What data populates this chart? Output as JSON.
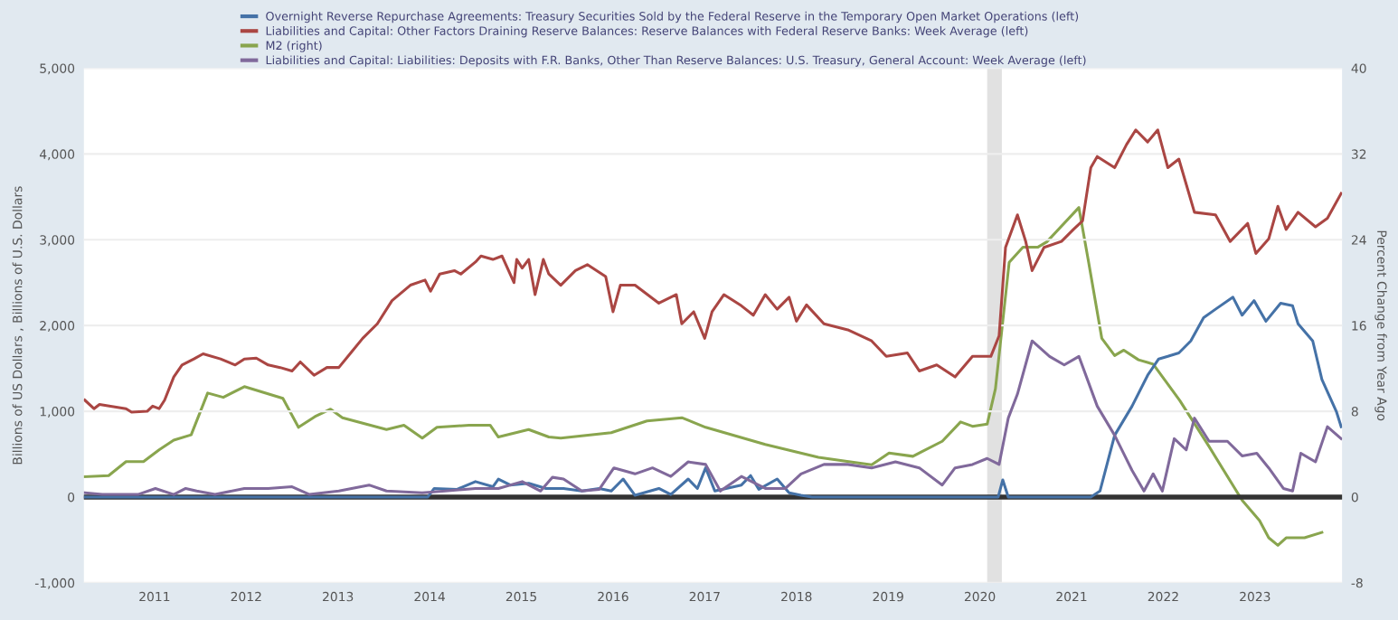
{
  "chart_data": {
    "type": "line",
    "ylabel": "Billions of US Dollars , Billions of U.S. Dollars",
    "y2label": "Percent Change from Year Ago",
    "xlim": [
      2010.23,
      2023.95
    ],
    "xticks": [
      2011,
      2012,
      2013,
      2014,
      2015,
      2016,
      2017,
      2018,
      2019,
      2020,
      2021,
      2022,
      2023
    ],
    "ylim": [
      -1000,
      5000
    ],
    "yticks": [
      {
        "value": -1000,
        "label": "-1,000"
      },
      0,
      {
        "value": 1000,
        "label": "1,000"
      },
      {
        "value": 2000,
        "label": "2,000"
      },
      {
        "value": 3000,
        "label": "3,000"
      },
      {
        "value": 4000,
        "label": "4,000"
      },
      {
        "value": 5000,
        "label": "5,000"
      }
    ],
    "y2lim": [
      -8,
      40
    ],
    "y2ticks": [
      -8,
      0,
      8,
      16,
      24,
      32,
      40
    ],
    "grid": "y",
    "legend": "top left",
    "line_style": "solid",
    "marker": "none",
    "bands": [
      {
        "axis": "x",
        "from": 2020.08,
        "to": 2020.24,
        "color": "#e1e1e1"
      }
    ],
    "ref_lines": [
      {
        "axis": "y",
        "value": 0,
        "color": "#333333"
      }
    ],
    "series": [
      {
        "name": "Overnight Reverse Repurchase Agreements: Treasury Securities Sold by the Federal Reserve in the Temporary Open Market Operations (left)",
        "color": "#4572a7",
        "x": [
          2010.24,
          2013.98,
          2014.05,
          2014.3,
          2014.5,
          2014.69,
          2014.75,
          2014.88,
          2015.08,
          2015.27,
          2015.46,
          2015.66,
          2015.85,
          2015.98,
          2016.11,
          2016.24,
          2016.5,
          2016.63,
          2016.82,
          2016.92,
          2017.01,
          2017.11,
          2017.4,
          2017.5,
          2017.59,
          2017.79,
          2017.92,
          2018.05,
          2018.17,
          2020.2,
          2020.25,
          2020.31,
          2021.21,
          2021.31,
          2021.47,
          2021.66,
          2021.83,
          2021.95,
          2022.05,
          2022.17,
          2022.3,
          2022.44,
          2022.57,
          2022.76,
          2022.86,
          2022.99,
          2023.12,
          2023.28,
          2023.41,
          2023.47,
          2023.63,
          2023.73,
          2023.89,
          2023.94
        ],
        "values": [
          0,
          0,
          100,
          90,
          180,
          120,
          210,
          140,
          160,
          100,
          100,
          70,
          100,
          70,
          210,
          20,
          100,
          30,
          210,
          100,
          340,
          70,
          140,
          250,
          90,
          210,
          50,
          20,
          0,
          0,
          200,
          0,
          0,
          70,
          720,
          1060,
          1420,
          1610,
          1640,
          1680,
          1820,
          2090,
          2190,
          2330,
          2120,
          2290,
          2050,
          2260,
          2230,
          2020,
          1820,
          1370,
          990,
          820
        ]
      },
      {
        "name": "Liabilities and Capital: Other Factors Draining Reserve Balances: Reserve Balances with Federal Reserve Banks: Week Average (left)",
        "color": "#aa4643",
        "x": [
          2010.24,
          2010.34,
          2010.4,
          2010.69,
          2010.75,
          2010.92,
          2010.98,
          2011.05,
          2011.11,
          2011.21,
          2011.3,
          2011.43,
          2011.53,
          2011.72,
          2011.88,
          2011.98,
          2012.11,
          2012.24,
          2012.37,
          2012.5,
          2012.59,
          2012.74,
          2012.88,
          2013.01,
          2013.14,
          2013.27,
          2013.43,
          2013.59,
          2013.79,
          2013.95,
          2014.01,
          2014.11,
          2014.27,
          2014.34,
          2014.5,
          2014.56,
          2014.69,
          2014.79,
          2014.92,
          2014.95,
          2015.01,
          2015.08,
          2015.15,
          2015.24,
          2015.3,
          2015.43,
          2015.59,
          2015.72,
          2015.92,
          2016.0,
          2016.08,
          2016.24,
          2016.5,
          2016.69,
          2016.75,
          2016.88,
          2017.0,
          2017.08,
          2017.21,
          2017.4,
          2017.53,
          2017.66,
          2017.79,
          2017.92,
          2018.0,
          2018.11,
          2018.3,
          2018.56,
          2018.82,
          2018.98,
          2019.21,
          2019.34,
          2019.53,
          2019.73,
          2019.92,
          2020.12,
          2020.21,
          2020.28,
          2020.41,
          2020.5,
          2020.57,
          2020.7,
          2020.89,
          2021.02,
          2021.12,
          2021.21,
          2021.28,
          2021.47,
          2021.6,
          2021.7,
          2021.83,
          2021.94,
          2022.05,
          2022.17,
          2022.34,
          2022.57,
          2022.73,
          2022.92,
          2023.01,
          2023.15,
          2023.25,
          2023.34,
          2023.47,
          2023.66,
          2023.79,
          2023.94
        ],
        "values": [
          1130,
          1030,
          1080,
          1030,
          990,
          1000,
          1060,
          1030,
          1130,
          1400,
          1540,
          1610,
          1670,
          1610,
          1540,
          1610,
          1620,
          1540,
          1510,
          1470,
          1575,
          1420,
          1510,
          1510,
          1680,
          1850,
          2020,
          2290,
          2470,
          2530,
          2400,
          2600,
          2640,
          2600,
          2740,
          2810,
          2770,
          2810,
          2500,
          2770,
          2670,
          2770,
          2360,
          2770,
          2600,
          2470,
          2640,
          2710,
          2570,
          2160,
          2470,
          2470,
          2260,
          2360,
          2020,
          2160,
          1850,
          2160,
          2360,
          2230,
          2120,
          2360,
          2190,
          2330,
          2050,
          2240,
          2020,
          1950,
          1820,
          1640,
          1680,
          1470,
          1540,
          1400,
          1640,
          1640,
          1880,
          2910,
          3290,
          2980,
          2640,
          2910,
          2980,
          3120,
          3220,
          3840,
          3970,
          3840,
          4110,
          4280,
          4140,
          4280,
          3840,
          3940,
          3320,
          3290,
          2980,
          3190,
          2840,
          3010,
          3390,
          3120,
          3320,
          3150,
          3250,
          3540
        ]
      },
      {
        "name": "M2 (right)",
        "color": "#89a54e",
        "axis": "y2",
        "x": [
          2010.24,
          2010.5,
          2010.69,
          2010.88,
          2011.05,
          2011.21,
          2011.4,
          2011.58,
          2011.75,
          2011.98,
          2012.4,
          2012.57,
          2012.75,
          2012.92,
          2013.05,
          2013.53,
          2013.72,
          2013.92,
          2014.08,
          2014.43,
          2014.66,
          2014.75,
          2015.08,
          2015.3,
          2015.43,
          2015.98,
          2016.37,
          2016.75,
          2017.01,
          2017.66,
          2018.24,
          2018.82,
          2019.01,
          2019.27,
          2019.59,
          2019.79,
          2019.92,
          2020.08,
          2020.17,
          2020.32,
          2020.47,
          2020.63,
          2020.73,
          2021.08,
          2021.18,
          2021.33,
          2021.47,
          2021.57,
          2021.73,
          2021.89,
          2022.18,
          2022.5,
          2022.86,
          2023.05,
          2023.15,
          2023.25,
          2023.34,
          2023.54,
          2023.73
        ],
        "values": [
          1.9,
          2.0,
          3.3,
          3.3,
          4.4,
          5.3,
          5.8,
          9.7,
          9.3,
          10.3,
          9.2,
          6.5,
          7.5,
          8.2,
          7.4,
          6.3,
          6.7,
          5.5,
          6.5,
          6.7,
          6.7,
          5.6,
          6.3,
          5.6,
          5.5,
          6.0,
          7.1,
          7.4,
          6.5,
          4.9,
          3.7,
          3.0,
          4.1,
          3.8,
          5.2,
          7.0,
          6.6,
          6.8,
          10.1,
          21.9,
          23.3,
          23.3,
          23.8,
          27.0,
          22.2,
          14.8,
          13.2,
          13.7,
          12.8,
          12.4,
          9.0,
          4.7,
          -0.3,
          -2.2,
          -3.8,
          -4.5,
          -3.8,
          -3.8,
          -3.3
        ]
      },
      {
        "name": "Liabilities and Capital: Liabilities: Deposits with F.R. Banks, Other Than Reserve Balances: U.S. Treasury, General Account: Week Average (left)",
        "color": "#80699b",
        "x": [
          2010.24,
          2010.43,
          2010.82,
          2011.01,
          2011.21,
          2011.34,
          2011.46,
          2011.66,
          2011.98,
          2012.24,
          2012.5,
          2012.69,
          2013.01,
          2013.34,
          2013.53,
          2013.92,
          2014.17,
          2014.5,
          2014.75,
          2015.01,
          2015.21,
          2015.34,
          2015.46,
          2015.66,
          2015.85,
          2016.01,
          2016.24,
          2016.43,
          2016.63,
          2016.82,
          2017.01,
          2017.17,
          2017.4,
          2017.66,
          2017.88,
          2018.05,
          2018.3,
          2018.56,
          2018.82,
          2019.08,
          2019.34,
          2019.59,
          2019.73,
          2019.92,
          2020.08,
          2020.21,
          2020.31,
          2020.41,
          2020.57,
          2020.76,
          2020.92,
          2021.08,
          2021.28,
          2021.47,
          2021.66,
          2021.79,
          2021.89,
          2021.99,
          2022.12,
          2022.25,
          2022.34,
          2022.5,
          2022.7,
          2022.86,
          2023.02,
          2023.15,
          2023.31,
          2023.41,
          2023.5,
          2023.66,
          2023.79,
          2023.94
        ],
        "values": [
          50,
          30,
          30,
          100,
          30,
          100,
          70,
          30,
          100,
          100,
          120,
          30,
          70,
          140,
          70,
          50,
          70,
          100,
          100,
          180,
          70,
          230,
          210,
          70,
          90,
          340,
          270,
          340,
          240,
          410,
          380,
          70,
          240,
          100,
          100,
          270,
          380,
          380,
          340,
          410,
          340,
          140,
          340,
          380,
          450,
          380,
          920,
          1200,
          1820,
          1640,
          1540,
          1640,
          1060,
          720,
          310,
          70,
          270,
          70,
          680,
          550,
          920,
          650,
          650,
          480,
          510,
          340,
          100,
          70,
          510,
          410,
          820,
          680
        ]
      }
    ]
  }
}
